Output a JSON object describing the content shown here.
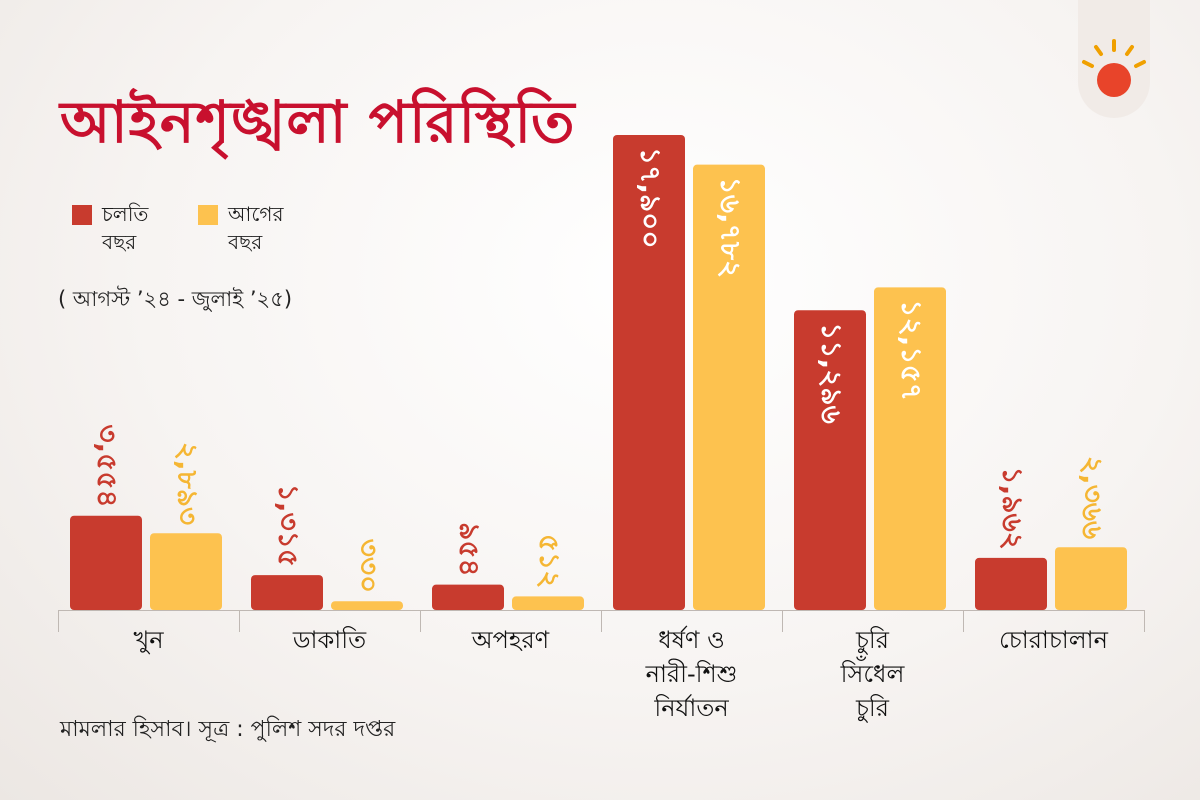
{
  "title": "আইনশৃঙ্খলা পরিস্থিতি",
  "legend": {
    "current": "চলতি বছর",
    "previous": "আগের বছর"
  },
  "period": "( আগস্ট ’২৪ - জুলাই ’২৫)",
  "source": "মামলার হিসাব। সূত্র : পুলিশ সদর দপ্তর",
  "colors": {
    "current": "#c83b2e",
    "previous": "#fdc24f",
    "title": "#c8102e"
  },
  "chart_data": {
    "type": "bar",
    "categories": [
      [
        "খুন"
      ],
      [
        "ডাকাতি"
      ],
      [
        "অপহরণ"
      ],
      [
        "ধর্ষণ ও",
        "নারী-শিশু",
        "নির্যাতন"
      ],
      [
        "চুরি",
        "সিঁধেল",
        "চুরি"
      ],
      [
        "চোরাচালান"
      ]
    ],
    "series": [
      {
        "name": "চলতি বছর",
        "values": [
          3554,
          1315,
          954,
          17900,
          11296,
          1962
        ],
        "labels": [
          "৩,৫৫৪",
          "১,৩১৫",
          "৯৫৪",
          "১৭,৯০০",
          "১১,২৯৬",
          "১,৯৬২"
        ]
      },
      {
        "name": "আগের বছর",
        "values": [
          2893,
          330,
          512,
          16782,
          12157,
          2366
        ],
        "labels": [
          "২,৮৯৩",
          "৩৩০",
          "৫১২",
          "১৬,৭৮২",
          "১২,১৫৭",
          "২,৩৬৬"
        ]
      }
    ],
    "ylim": [
      0,
      17900
    ],
    "grid": false,
    "legend_position": "top-left"
  }
}
